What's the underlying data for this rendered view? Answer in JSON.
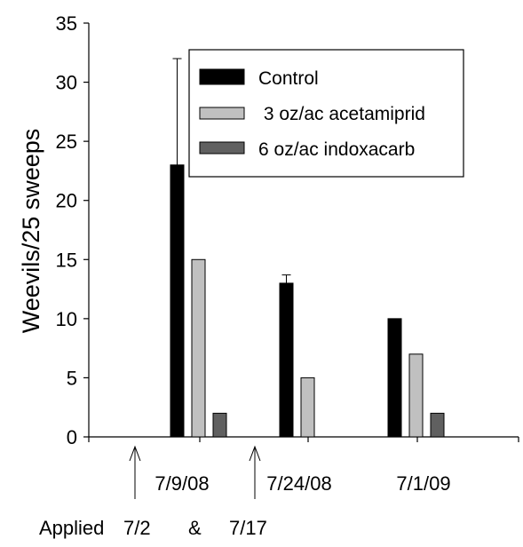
{
  "chart_data": {
    "type": "bar",
    "categories": [
      "7/9/08",
      "7/24/08",
      "7/1/09"
    ],
    "series": [
      {
        "name": "Control",
        "values": [
          23,
          13,
          10
        ],
        "error_upper": [
          32,
          13.7,
          null
        ],
        "color": "#000000"
      },
      {
        "name": " 3 oz/ac acetamiprid",
        "values": [
          15,
          5,
          7
        ],
        "color": "#c0c0c0"
      },
      {
        "name": "6 oz/ac indoxacarb",
        "values": [
          2,
          0,
          2
        ],
        "color": "#606060"
      }
    ],
    "ylabel": "Weevils/25 sweeps",
    "ylim": [
      0,
      35
    ],
    "yticks": [
      "0",
      "5",
      "10",
      "15",
      "20",
      "25",
      "30",
      "35"
    ],
    "legend_position": "top-right",
    "grid": false,
    "annotation": {
      "applied": "Applied",
      "date1": "7/2",
      "amp": "&",
      "date2": "7/17"
    }
  }
}
